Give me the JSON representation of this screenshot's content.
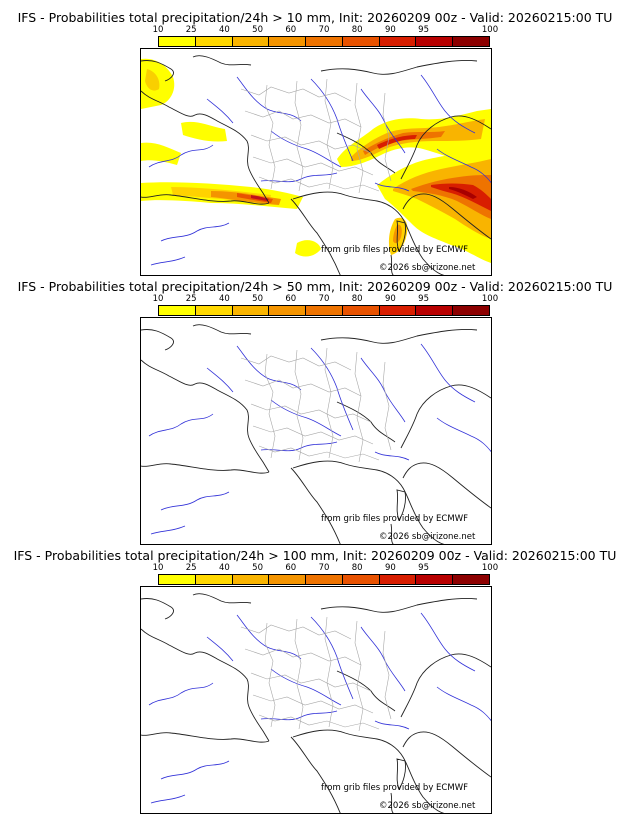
{
  "colorbar": {
    "labels": [
      "10",
      "25",
      "40",
      "50",
      "60",
      "70",
      "80",
      "90",
      "95",
      "100"
    ],
    "colors": [
      "#ffff00",
      "#ffd800",
      "#f9b400",
      "#f49400",
      "#ee7300",
      "#e85200",
      "#d81e00",
      "#b80000",
      "#8c0000",
      "#5c0000"
    ]
  },
  "panels": [
    {
      "title": "IFS - Probabilities total precipitation/24h > 10 mm, Init: 20260209 00z - Valid: 20260215:00 TU",
      "source": "from grib files provided by ECMWF",
      "copyright": "©2026 sb@irizone.net"
    },
    {
      "title": "IFS - Probabilities total precipitation/24h > 50 mm, Init: 20260209 00z - Valid: 20260215:00 TU",
      "source": "from grib files provided by ECMWF",
      "copyright": "©2026 sb@irizone.net"
    },
    {
      "title": "IFS - Probabilities total precipitation/24h > 100 mm, Init: 20260209 00z - Valid: 20260215:00 TU",
      "source": "from grib files provided by ECMWF",
      "copyright": "©2026 sb@irizone.net"
    }
  ]
}
